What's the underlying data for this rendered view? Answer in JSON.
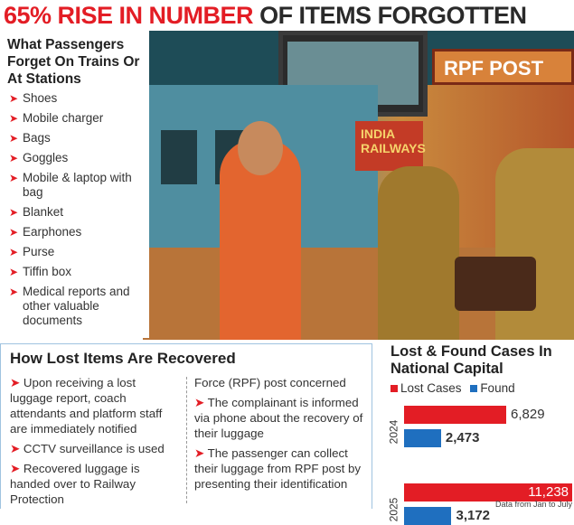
{
  "title": {
    "highlight": "65% RISE IN NUMBER",
    "rest": " OF ITEMS FORGOTTEN"
  },
  "forgotten": {
    "heading": "What Passengers Forget On Trains Or At Stations",
    "items": [
      "Shoes",
      "Mobile charger",
      "Bags",
      "Goggles",
      "Mobile & laptop with bag",
      "Blanket",
      "Earphones",
      "Purse",
      "Tiffin box",
      "Medical reports and other valuable documents"
    ]
  },
  "illustration": {
    "sign_rpf": "RPF POST",
    "sign_train": "INDIA RAILWAYS"
  },
  "recovery": {
    "heading": "How Lost Items Are Recovered",
    "col1": [
      {
        "bullet": true,
        "text": "Upon receiving a lost luggage report, coach attendants and platform staff are immediately notified"
      },
      {
        "bullet": true,
        "text": "CCTV surveillance is used"
      },
      {
        "bullet": true,
        "text": "Recovered luggage is handed over to Railway Protection"
      }
    ],
    "col2": [
      {
        "bullet": false,
        "text": "Force (RPF) post concerned"
      },
      {
        "bullet": true,
        "text": "The complainant is informed via phone about the recovery of their luggage"
      },
      {
        "bullet": true,
        "text": "The passenger can collect their luggage from RPF post by presenting their identification"
      }
    ]
  },
  "chart_data": {
    "type": "bar",
    "orientation": "horizontal",
    "title": "Lost & Found Cases In National Capital",
    "categories": [
      "2024",
      "2025"
    ],
    "series": [
      {
        "name": "Lost Cases",
        "color": "#e31d25",
        "values": [
          6829,
          11238
        ],
        "labels": [
          "6,829",
          "11,238"
        ]
      },
      {
        "name": "Found",
        "color": "#1f6fbf",
        "values": [
          2473,
          3172
        ],
        "labels": [
          "2,473",
          "3,172"
        ]
      }
    ],
    "note": "Data from Jan to July",
    "xlim": [
      0,
      11238
    ]
  },
  "arrow_glyph": "➤"
}
